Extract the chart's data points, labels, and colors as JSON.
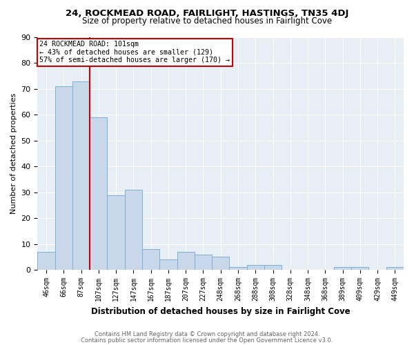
{
  "title1": "24, ROCKMEAD ROAD, FAIRLIGHT, HASTINGS, TN35 4DJ",
  "title2": "Size of property relative to detached houses in Fairlight Cove",
  "xlabel": "Distribution of detached houses by size in Fairlight Cove",
  "ylabel": "Number of detached properties",
  "footnote1": "Contains HM Land Registry data © Crown copyright and database right 2024.",
  "footnote2": "Contains public sector information licensed under the Open Government Licence v3.0.",
  "bin_labels": [
    "46sqm",
    "66sqm",
    "87sqm",
    "107sqm",
    "127sqm",
    "147sqm",
    "167sqm",
    "187sqm",
    "207sqm",
    "227sqm",
    "248sqm",
    "268sqm",
    "288sqm",
    "308sqm",
    "328sqm",
    "348sqm",
    "368sqm",
    "389sqm",
    "409sqm",
    "429sqm",
    "449sqm"
  ],
  "bar_heights": [
    7,
    71,
    73,
    59,
    29,
    31,
    8,
    4,
    7,
    6,
    5,
    1,
    2,
    2,
    0,
    0,
    0,
    1,
    1,
    0,
    1
  ],
  "bar_color": "#c8d8ea",
  "bar_edge_color": "#7bafd4",
  "red_line_x": 2.5,
  "annotation_line1": "24 ROCKMEAD ROAD: 101sqm",
  "annotation_line2": "← 43% of detached houses are smaller (129)",
  "annotation_line3": "57% of semi-detached houses are larger (170) →",
  "annotation_box_color": "#ffffff",
  "annotation_box_edge": "#cc0000",
  "ylim": [
    0,
    90
  ],
  "yticks": [
    0,
    10,
    20,
    30,
    40,
    50,
    60,
    70,
    80,
    90
  ],
  "background_color": "#e8eef6",
  "grid_color": "#ffffff",
  "red_line_color": "#cc0000",
  "title1_fontsize": 9.5,
  "title2_fontsize": 8.5
}
